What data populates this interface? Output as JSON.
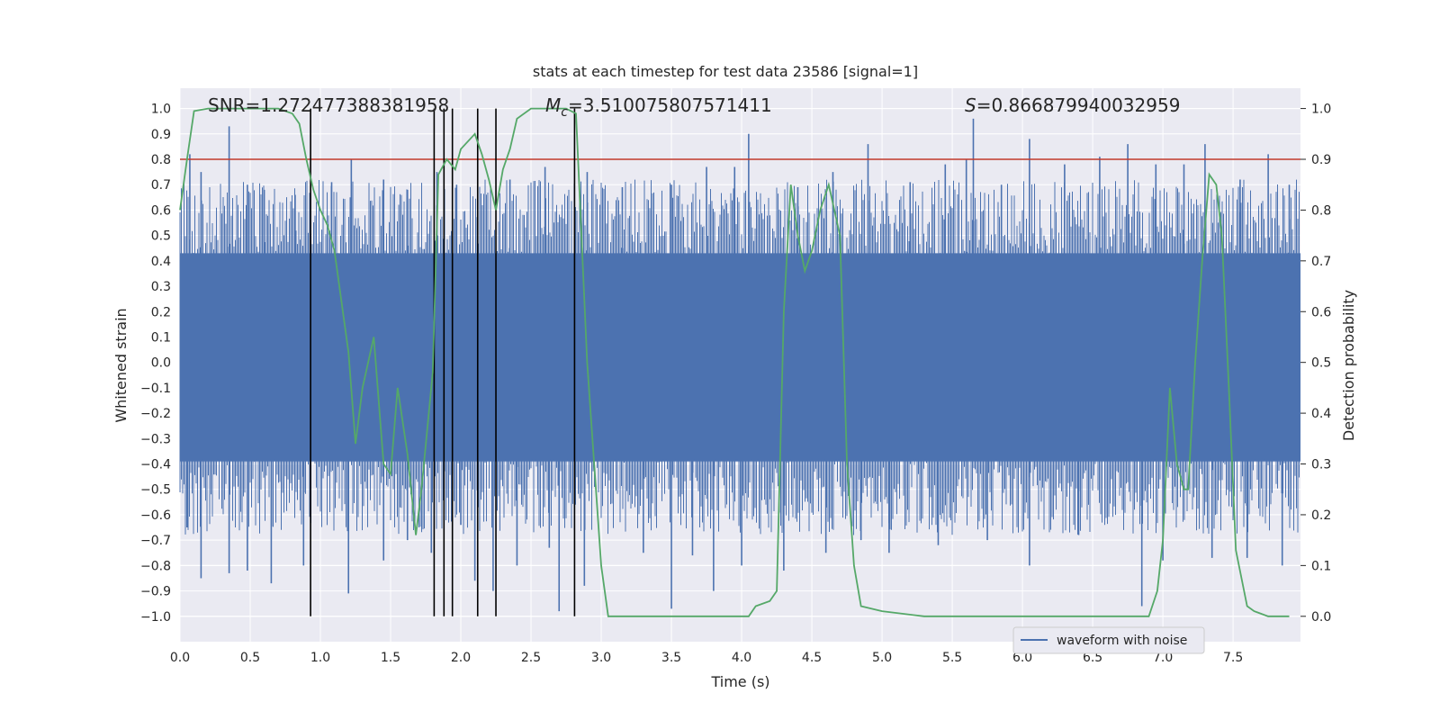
{
  "chart_data": {
    "type": "line",
    "title": "stats at each timestep for test data 23586 [signal=1]",
    "xlabel": "Time (s)",
    "ylabel_left": "Whitened strain",
    "ylabel_right": "Detection probability",
    "xlim": [
      0,
      7.98
    ],
    "ylim_left": [
      -1.1,
      1.08
    ],
    "ylim_right": [
      -0.05,
      1.04
    ],
    "x_ticks": [
      "0.0",
      "0.5",
      "1.0",
      "1.5",
      "2.0",
      "2.5",
      "3.0",
      "3.5",
      "4.0",
      "4.5",
      "5.0",
      "5.5",
      "6.0",
      "6.5",
      "7.0",
      "7.5"
    ],
    "x_tick_values": [
      0,
      0.5,
      1,
      1.5,
      2,
      2.5,
      3,
      3.5,
      4,
      4.5,
      5,
      5.5,
      6,
      6.5,
      7,
      7.5
    ],
    "y_ticks_left": [
      "1.0",
      "0.9",
      "0.8",
      "0.7",
      "0.6",
      "0.5",
      "0.4",
      "0.3",
      "0.2",
      "0.1",
      "0.0",
      "−0.1",
      "−0.2",
      "−0.3",
      "−0.4",
      "−0.5",
      "−0.6",
      "−0.7",
      "−0.8",
      "−0.9",
      "−1.0"
    ],
    "y_tick_values_left": [
      1.0,
      0.9,
      0.8,
      0.7,
      0.6,
      0.5,
      0.4,
      0.3,
      0.2,
      0.1,
      0.0,
      -0.1,
      -0.2,
      -0.3,
      -0.4,
      -0.5,
      -0.6,
      -0.7,
      -0.8,
      -0.9,
      -1.0
    ],
    "y_ticks_right": [
      "1.0",
      "0.9",
      "0.8",
      "0.7",
      "0.6",
      "0.5",
      "0.4",
      "0.3",
      "0.2",
      "0.1",
      "0.0"
    ],
    "y_tick_values_right": [
      1.0,
      0.9,
      0.8,
      0.7,
      0.6,
      0.5,
      0.4,
      0.3,
      0.2,
      0.1,
      0.0
    ],
    "grid": true,
    "legend": {
      "label": "waveform with noise",
      "placement": "lower-right"
    },
    "annotations": {
      "snr": "SNR=1.272477388381958",
      "mc_symbol": "M",
      "mc_sub": "c",
      "mc_value": "=3.510075807571411",
      "s_symbol": "S",
      "s_value": "=0.866879940032959"
    },
    "threshold": {
      "value": 0.9,
      "color": "#c0392b"
    },
    "vertical_lines_x": [
      0.93,
      1.81,
      1.88,
      1.94,
      2.12,
      2.25,
      2.81
    ],
    "waveform": {
      "color": "#4c72b0",
      "dense_band": [
        -0.39,
        0.43
      ],
      "spikes": [
        [
          0.07,
          0.82
        ],
        [
          0.15,
          0.75
        ],
        [
          0.35,
          0.93
        ],
        [
          0.48,
          0.7
        ],
        [
          0.6,
          0.68
        ],
        [
          0.82,
          0.66
        ],
        [
          1.08,
          0.71
        ],
        [
          1.22,
          0.8
        ],
        [
          1.45,
          0.72
        ],
        [
          1.62,
          0.68
        ],
        [
          1.83,
          0.75
        ],
        [
          1.97,
          0.7
        ],
        [
          2.35,
          0.72
        ],
        [
          2.6,
          0.77
        ],
        [
          2.9,
          0.75
        ],
        [
          3.15,
          0.69
        ],
        [
          3.5,
          0.7
        ],
        [
          3.75,
          0.77
        ],
        [
          3.95,
          0.77
        ],
        [
          4.05,
          0.9
        ],
        [
          4.4,
          0.69
        ],
        [
          4.65,
          0.75
        ],
        [
          4.9,
          0.86
        ],
        [
          5.2,
          0.71
        ],
        [
          5.45,
          0.78
        ],
        [
          5.6,
          0.8
        ],
        [
          5.65,
          0.96
        ],
        [
          5.85,
          0.7
        ],
        [
          6.05,
          0.88
        ],
        [
          6.3,
          0.78
        ],
        [
          6.55,
          0.81
        ],
        [
          6.75,
          0.86
        ],
        [
          6.95,
          0.78
        ],
        [
          7.15,
          0.78
        ],
        [
          7.3,
          0.86
        ],
        [
          7.55,
          0.72
        ],
        [
          7.75,
          0.82
        ],
        [
          7.9,
          0.7
        ],
        [
          0.05,
          -0.65
        ],
        [
          0.15,
          -0.85
        ],
        [
          0.35,
          -0.83
        ],
        [
          0.48,
          -0.82
        ],
        [
          0.65,
          -0.87
        ],
        [
          0.88,
          -0.8
        ],
        [
          1.2,
          -0.91
        ],
        [
          1.45,
          -0.78
        ],
        [
          1.62,
          -0.7
        ],
        [
          1.79,
          -0.75
        ],
        [
          2.0,
          -0.64
        ],
        [
          2.1,
          -0.86
        ],
        [
          2.23,
          -0.9
        ],
        [
          2.4,
          -0.8
        ],
        [
          2.63,
          -0.73
        ],
        [
          2.7,
          -0.98
        ],
        [
          2.88,
          -0.88
        ],
        [
          3.3,
          -0.75
        ],
        [
          3.5,
          -0.97
        ],
        [
          3.65,
          -0.76
        ],
        [
          3.8,
          -0.9
        ],
        [
          4.0,
          -0.8
        ],
        [
          4.3,
          -0.82
        ],
        [
          4.6,
          -0.75
        ],
        [
          4.85,
          -0.7
        ],
        [
          5.05,
          -0.75
        ],
        [
          5.4,
          -0.72
        ],
        [
          5.75,
          -0.7
        ],
        [
          6.05,
          -0.8
        ],
        [
          6.4,
          -0.68
        ],
        [
          6.85,
          -0.96
        ],
        [
          7.0,
          -0.78
        ],
        [
          7.35,
          -0.77
        ],
        [
          7.6,
          -0.77
        ],
        [
          7.85,
          -0.8
        ]
      ]
    },
    "probability": {
      "color": "#55a868",
      "x": [
        0,
        0.05,
        0.1,
        0.2,
        0.3,
        0.5,
        0.7,
        0.8,
        0.85,
        0.9,
        0.95,
        1.0,
        1.05,
        1.1,
        1.15,
        1.2,
        1.25,
        1.3,
        1.38,
        1.45,
        1.5,
        1.55,
        1.62,
        1.68,
        1.72,
        1.8,
        1.84,
        1.9,
        1.96,
        2.0,
        2.1,
        2.15,
        2.2,
        2.25,
        2.3,
        2.35,
        2.4,
        2.5,
        2.6,
        2.75,
        2.82,
        2.9,
        3.0,
        3.05,
        3.2,
        3.5,
        3.8,
        3.95,
        4.05,
        4.1,
        4.2,
        4.25,
        4.3,
        4.35,
        4.4,
        4.45,
        4.5,
        4.56,
        4.62,
        4.7,
        4.75,
        4.8,
        4.85,
        5.0,
        5.3,
        5.6,
        6.0,
        6.4,
        6.8,
        6.9,
        6.96,
        7.0,
        7.05,
        7.1,
        7.15,
        7.18,
        7.23,
        7.28,
        7.33,
        7.38,
        7.42,
        7.47,
        7.52,
        7.6,
        7.65,
        7.75,
        7.9
      ],
      "y": [
        0.8,
        0.9,
        0.995,
        1.0,
        1.0,
        1.0,
        1.0,
        0.99,
        0.97,
        0.9,
        0.84,
        0.8,
        0.77,
        0.72,
        0.62,
        0.52,
        0.34,
        0.45,
        0.55,
        0.3,
        0.28,
        0.45,
        0.32,
        0.16,
        0.25,
        0.48,
        0.87,
        0.9,
        0.88,
        0.92,
        0.95,
        0.91,
        0.86,
        0.8,
        0.88,
        0.92,
        0.98,
        1.0,
        1.0,
        1.0,
        0.99,
        0.5,
        0.1,
        0.0,
        0.0,
        0.0,
        0.0,
        0.0,
        0.0,
        0.02,
        0.03,
        0.05,
        0.6,
        0.85,
        0.75,
        0.68,
        0.72,
        0.8,
        0.85,
        0.75,
        0.3,
        0.1,
        0.02,
        0.01,
        0.0,
        0.0,
        0.0,
        0.0,
        0.0,
        0.0,
        0.05,
        0.15,
        0.45,
        0.3,
        0.25,
        0.25,
        0.5,
        0.7,
        0.87,
        0.85,
        0.75,
        0.45,
        0.13,
        0.02,
        0.01,
        0.0,
        0.0
      ]
    }
  }
}
